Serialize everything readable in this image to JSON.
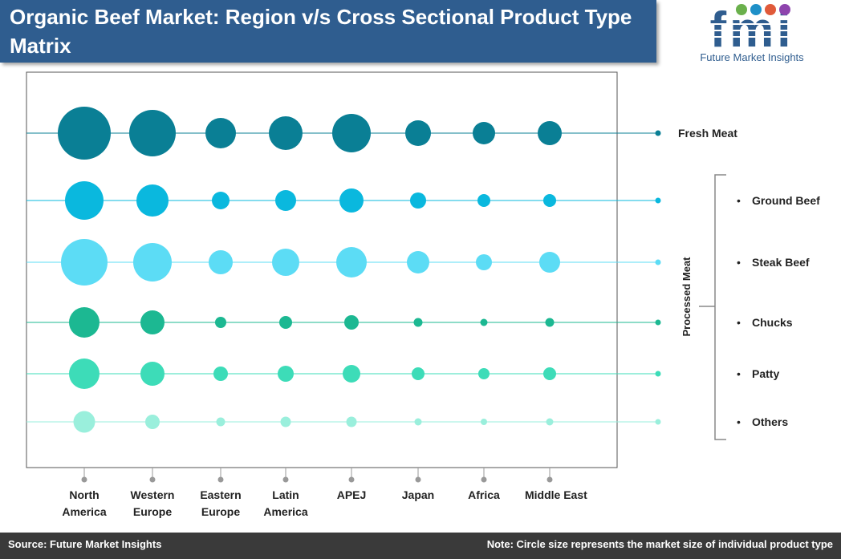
{
  "title": "Organic Beef Market: Region v/s Cross Sectional Product Type Matrix",
  "logo": {
    "letters": "fmi",
    "caption": "Future Market Insights"
  },
  "footer": {
    "source": "Source: Future Market Insights",
    "note": "Note: Circle size represents the market size of individual product type"
  },
  "chart_data": {
    "type": "bubble-matrix",
    "title": "Organic Beef Market: Region v/s Cross Sectional Product Type Matrix",
    "regions": [
      [
        "North",
        "America"
      ],
      [
        "Western",
        "Europe"
      ],
      [
        "Eastern",
        "Europe"
      ],
      [
        "Latin",
        "America"
      ],
      [
        "APEJ"
      ],
      [
        "Japan"
      ],
      [
        "Africa"
      ],
      [
        "Middle East"
      ]
    ],
    "product_types": [
      "Fresh Meat",
      "Ground Beef",
      "Steak Beef",
      "Chucks",
      "Patty",
      "Others"
    ],
    "group_label": "Processed Meat",
    "size_note": "Circle size represents the market size of individual product type",
    "row_colors": [
      "#0a7f95",
      "#0ab8de",
      "#5cdcf5",
      "#1cb892",
      "#3ddcb8",
      "#9aefdc"
    ],
    "sizes": [
      [
        33,
        29,
        19,
        21,
        24,
        16,
        14,
        15
      ],
      [
        24,
        20,
        11,
        13,
        15,
        10,
        8,
        8
      ],
      [
        29,
        24,
        15,
        17,
        19,
        14,
        10,
        13
      ],
      [
        19,
        15,
        7,
        8,
        9,
        5.5,
        4.5,
        5.5
      ],
      [
        19,
        15,
        9,
        10,
        11,
        8,
        7,
        8
      ],
      [
        13.5,
        9,
        5.5,
        6.5,
        6.5,
        4.5,
        4,
        4.5
      ]
    ],
    "size_unit": "relative circle radius (market size, no axis)"
  }
}
